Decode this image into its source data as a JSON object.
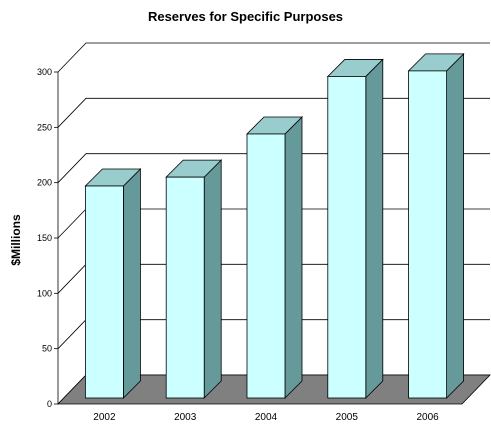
{
  "chart_data": {
    "type": "bar",
    "title": "Reserves for Specific Purposes",
    "xlabel": "",
    "ylabel": "$Millions",
    "categories": [
      "2002",
      "2003",
      "2004",
      "2005",
      "2006"
    ],
    "values": [
      197,
      205,
      244,
      296,
      301
    ],
    "ylim": [
      0,
      300
    ],
    "yticks": [
      "0",
      "50",
      "100",
      "150",
      "200",
      "250",
      "300"
    ],
    "grid": true,
    "style": "3d-column",
    "colors": {
      "bar_front": "#ccffff",
      "bar_top": "#99cccc",
      "bar_side": "#669999",
      "floor": "#808080",
      "outline": "#000000"
    }
  }
}
